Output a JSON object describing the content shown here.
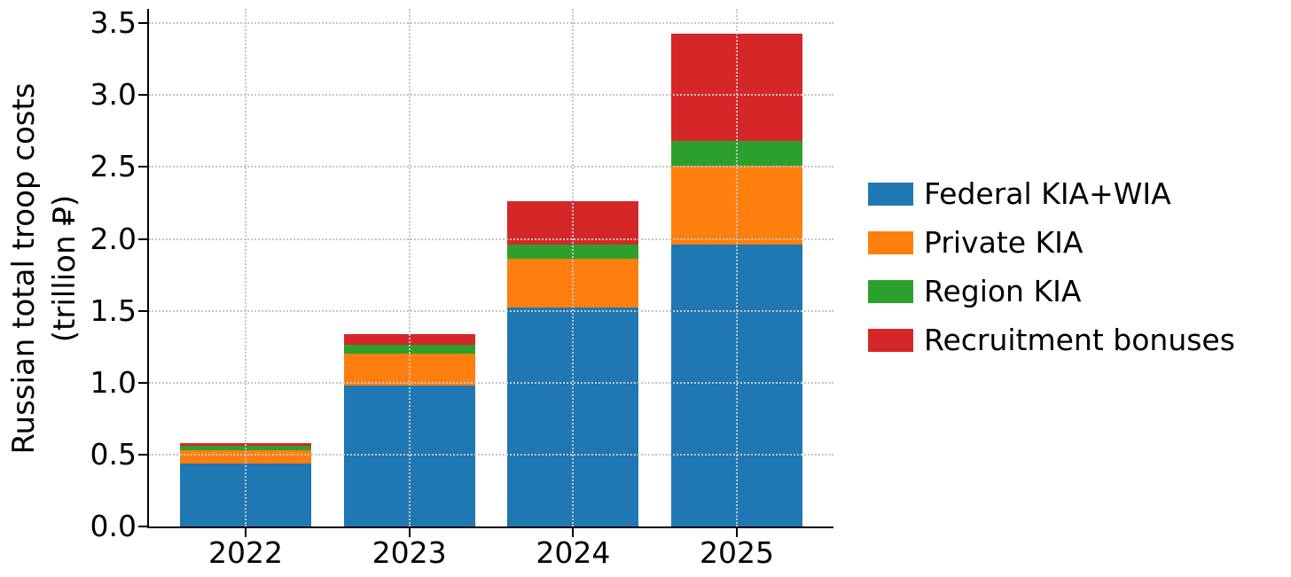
{
  "chart_data": {
    "type": "bar",
    "stacked": true,
    "title": "",
    "xlabel": "",
    "ylabel": "Russian total troop costs (trillion ₽)",
    "ylabel_lines": [
      "Russian total troop costs",
      "(trillion ₽)"
    ],
    "categories": [
      "2022",
      "2023",
      "2024",
      "2025"
    ],
    "series": [
      {
        "name": "Federal KIA+WIA",
        "color": "#1f77b4",
        "values": [
          0.44,
          0.98,
          1.52,
          1.96
        ]
      },
      {
        "name": "Private KIA",
        "color": "#ff7f0e",
        "values": [
          0.09,
          0.22,
          0.34,
          0.55
        ]
      },
      {
        "name": "Region KIA",
        "color": "#2ca02c",
        "values": [
          0.03,
          0.065,
          0.1,
          0.17
        ]
      },
      {
        "name": "Recruitment bonuses",
        "color": "#d62728",
        "values": [
          0.02,
          0.075,
          0.3,
          0.75
        ]
      }
    ],
    "stack_totals": [
      0.58,
      1.34,
      2.26,
      3.43
    ],
    "yticks": [
      "0.0",
      "0.5",
      "1.0",
      "1.5",
      "2.0",
      "2.5",
      "3.0",
      "3.5"
    ],
    "ylim": [
      0,
      3.6
    ],
    "grid": {
      "on": true,
      "style": "dotted",
      "color": "#c6c6c6",
      "horizontal": true,
      "vertical": true,
      "above_bars": true
    },
    "legend": {
      "position": "right",
      "frame": false
    },
    "axis_color": "#000000",
    "background_color": "#ffffff"
  }
}
